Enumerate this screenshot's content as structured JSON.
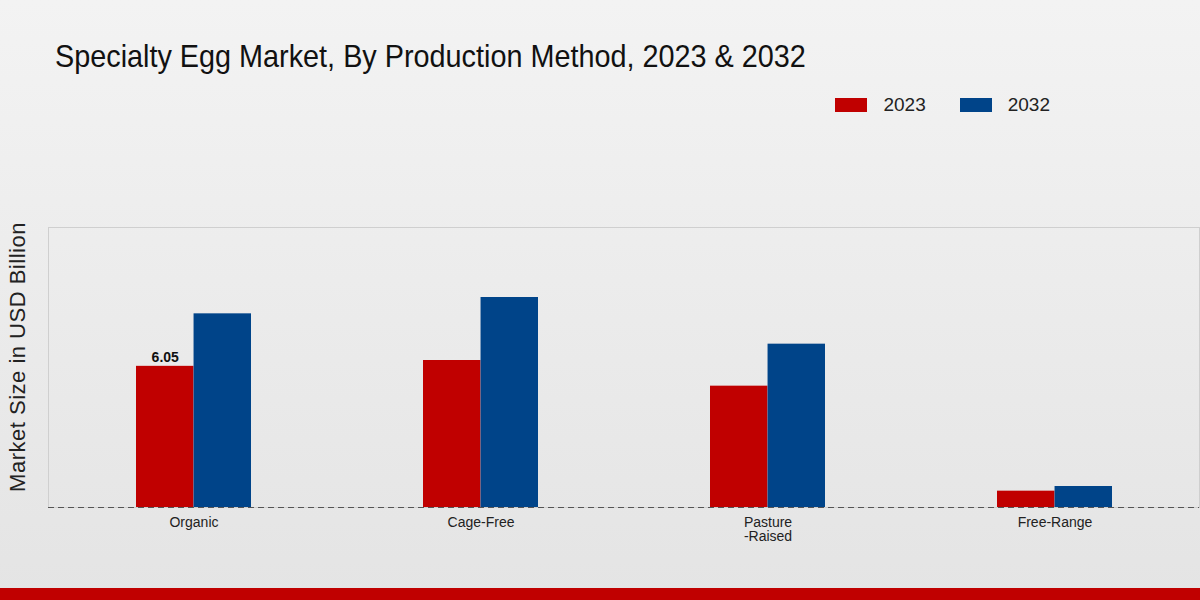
{
  "chart_data": {
    "type": "bar",
    "title": "Specialty Egg Market, By Production Method, 2023 & 2032",
    "y_label": "Market Size in USD Billion",
    "categories": [
      "Organic",
      "Cage-Free",
      "Pasture\n-Raised",
      "Free-Range"
    ],
    "series": [
      {
        "name": "2023",
        "color": "#c00000",
        "values": [
          6.05,
          6.3,
          5.2,
          0.7
        ],
        "value_labels": [
          "6.05",
          null,
          null,
          null
        ]
      },
      {
        "name": "2032",
        "color": "#004489",
        "values": [
          8.3,
          9.0,
          7.0,
          0.9
        ]
      }
    ],
    "ylim": [
      0,
      12
    ],
    "yticks": [],
    "grid": false,
    "legend": "top-right",
    "data_labels": true,
    "tick_labels": "x"
  }
}
